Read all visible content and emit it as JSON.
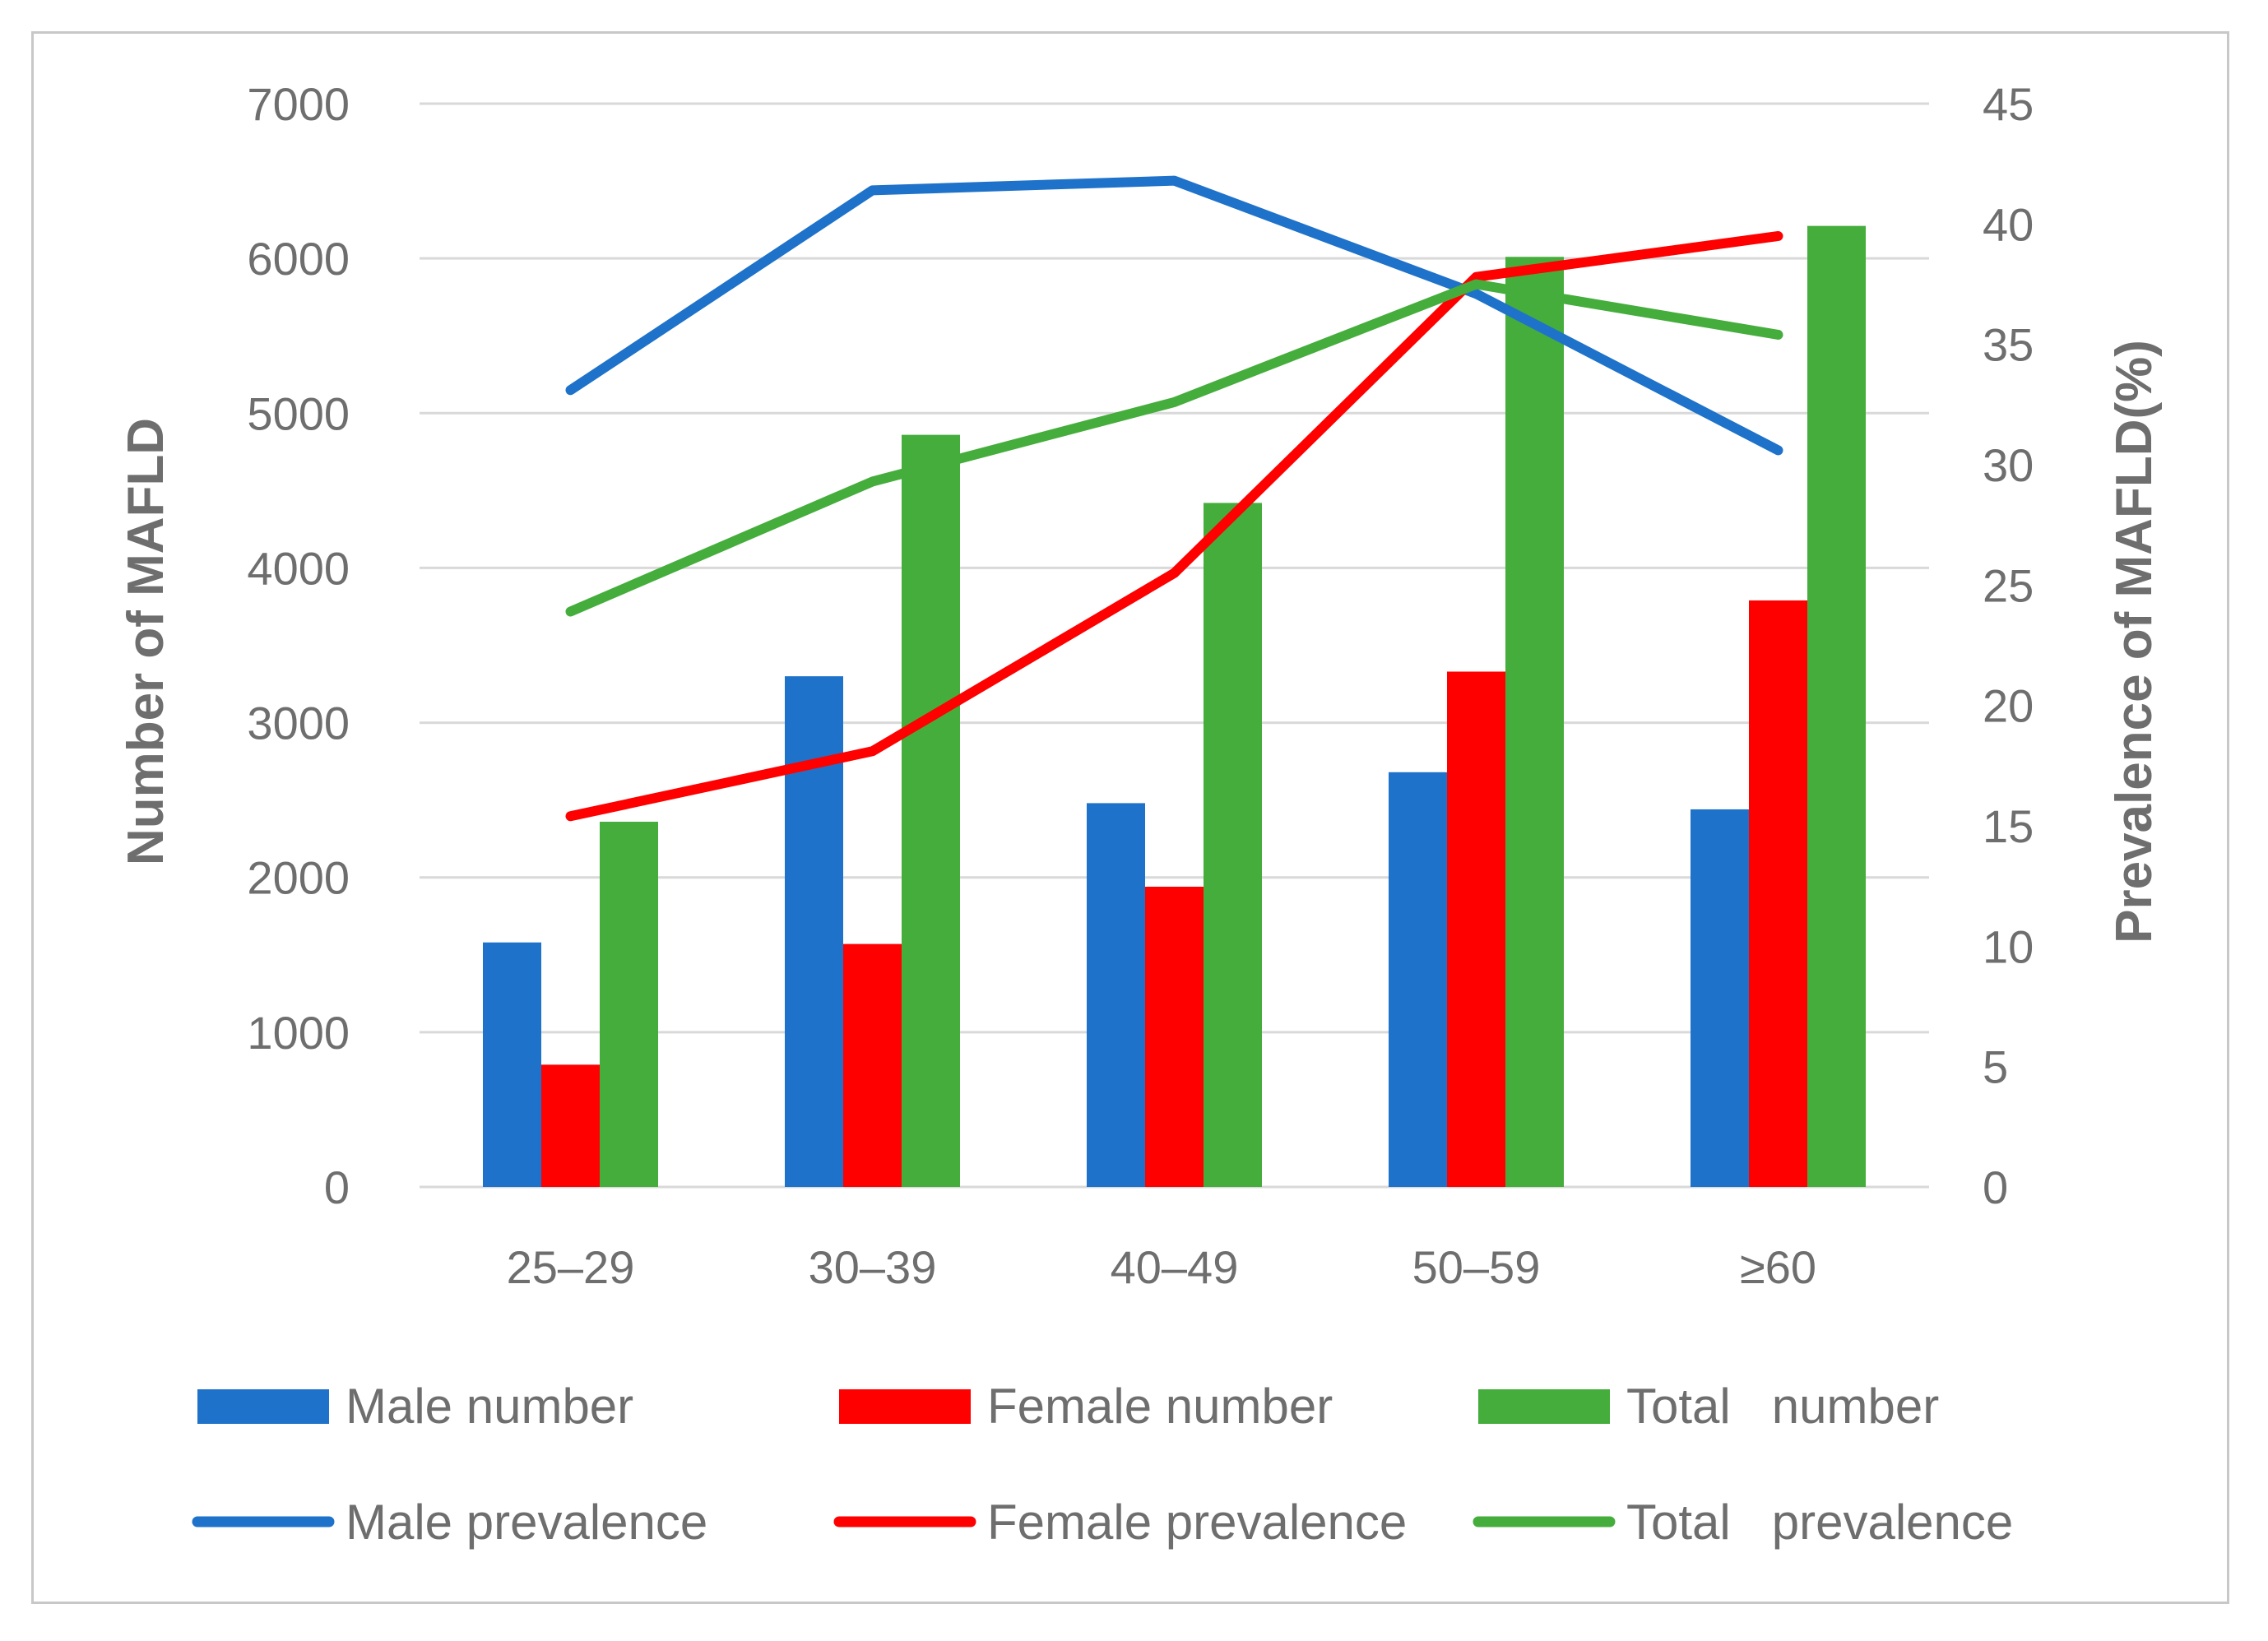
{
  "chart_data": {
    "type": "bar",
    "title": "",
    "categories": [
      "25–29",
      "30–39",
      "40–49",
      "50–59",
      "≥60"
    ],
    "y_left": {
      "label": "Number of MAFLD",
      "lim": [
        0,
        7000
      ],
      "ticks": [
        "0",
        "1000",
        "2000",
        "3000",
        "4000",
        "5000",
        "6000",
        "7000"
      ]
    },
    "y_right": {
      "label": "Prevalence of MAFLD(%)",
      "lim": [
        0,
        45
      ],
      "ticks": [
        "0",
        "5",
        "10",
        "15",
        "20",
        "25",
        "30",
        "35",
        "40",
        "45"
      ]
    },
    "bar_series": [
      {
        "name": "Male number",
        "color": "#1f72c9",
        "values": [
          1580,
          3300,
          2480,
          2680,
          2440
        ]
      },
      {
        "name": "Female number",
        "color": "#ff0000",
        "values": [
          790,
          1570,
          1940,
          3330,
          3790
        ]
      },
      {
        "name": "Total   number",
        "color": "#45ad3c",
        "values": [
          2360,
          4860,
          4420,
          6010,
          6210
        ]
      }
    ],
    "line_series": [
      {
        "name": "Male prevalence",
        "color": "#1f72c9",
        "values": [
          33.1,
          41.4,
          41.8,
          37.1,
          30.6
        ]
      },
      {
        "name": "Female prevalence",
        "color": "#ff0000",
        "values": [
          15.4,
          18.1,
          25.5,
          37.8,
          39.5
        ]
      },
      {
        "name": "Total   prevalence",
        "color": "#45ad3c",
        "values": [
          23.9,
          29.3,
          32.6,
          37.5,
          35.4
        ]
      }
    ],
    "grid": true,
    "legend_position": "bottom"
  }
}
